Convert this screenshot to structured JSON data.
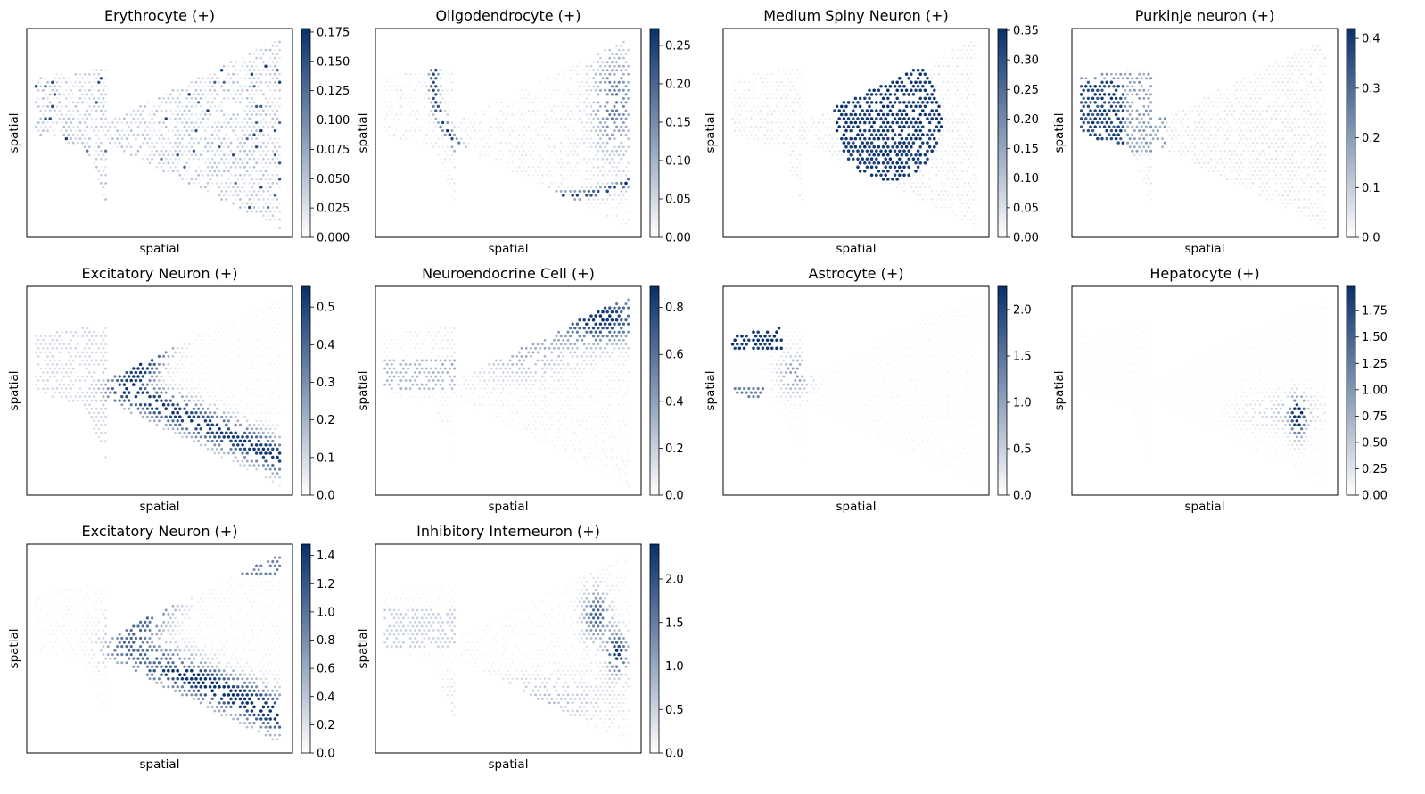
{
  "colors": {
    "cmap_low": "#ffffff",
    "cmap_high": "#08306b",
    "frame": "#000000"
  },
  "chart_data": [
    {
      "type": "scatter",
      "title": "Erythrocyte (+)",
      "xlabel": "spatial",
      "ylabel": "spatial",
      "colorbar": {
        "vmin": 0.0,
        "vmax": 0.178,
        "ticks": [
          "0.000",
          "0.025",
          "0.050",
          "0.075",
          "0.100",
          "0.125",
          "0.150",
          "0.175"
        ],
        "tick_values": [
          0,
          0.025,
          0.05,
          0.075,
          0.1,
          0.125,
          0.15,
          0.175
        ]
      },
      "pattern": "uniform-speckle"
    },
    {
      "type": "scatter",
      "title": "Oligodendrocyte (+)",
      "xlabel": "spatial",
      "ylabel": "spatial",
      "colorbar": {
        "vmin": 0.0,
        "vmax": 0.272,
        "ticks": [
          "0.00",
          "0.05",
          "0.10",
          "0.15",
          "0.20",
          "0.25"
        ],
        "tick_values": [
          0,
          0.05,
          0.1,
          0.15,
          0.2,
          0.25
        ]
      },
      "pattern": "tracts"
    },
    {
      "type": "scatter",
      "title": "Medium Spiny Neuron (+)",
      "xlabel": "spatial",
      "ylabel": "spatial",
      "colorbar": {
        "vmin": 0.0,
        "vmax": 0.353,
        "ticks": [
          "0.00",
          "0.05",
          "0.10",
          "0.15",
          "0.20",
          "0.25",
          "0.30",
          "0.35"
        ],
        "tick_values": [
          0,
          0.05,
          0.1,
          0.15,
          0.2,
          0.25,
          0.3,
          0.35
        ]
      },
      "pattern": "striatum"
    },
    {
      "type": "scatter",
      "title": "Purkinje neuron (+)",
      "xlabel": "spatial",
      "ylabel": "spatial",
      "colorbar": {
        "vmin": 0.0,
        "vmax": 0.42,
        "ticks": [
          "0.0",
          "0.1",
          "0.2",
          "0.3",
          "0.4"
        ],
        "tick_values": [
          0,
          0.1,
          0.2,
          0.3,
          0.4
        ]
      },
      "pattern": "cerebellum"
    },
    {
      "type": "scatter",
      "title": "Excitatory Neuron (+)",
      "xlabel": "spatial",
      "ylabel": "spatial",
      "colorbar": {
        "vmin": 0.0,
        "vmax": 0.555,
        "ticks": [
          "0.0",
          "0.1",
          "0.2",
          "0.3",
          "0.4",
          "0.5"
        ],
        "tick_values": [
          0,
          0.1,
          0.2,
          0.3,
          0.4,
          0.5
        ]
      },
      "pattern": "cortex-band"
    },
    {
      "type": "scatter",
      "title": "Neuroendocrine Cell (+)",
      "xlabel": "spatial",
      "ylabel": "spatial",
      "colorbar": {
        "vmin": 0.0,
        "vmax": 0.89,
        "ticks": [
          "0.0",
          "0.2",
          "0.4",
          "0.6",
          "0.8"
        ],
        "tick_values": [
          0,
          0.2,
          0.4,
          0.6,
          0.8
        ]
      },
      "pattern": "upper-right"
    },
    {
      "type": "scatter",
      "title": "Astrocyte (+)",
      "xlabel": "spatial",
      "ylabel": "spatial",
      "colorbar": {
        "vmin": 0.0,
        "vmax": 2.25,
        "ticks": [
          "0.0",
          "0.5",
          "1.0",
          "1.5",
          "2.0"
        ],
        "tick_values": [
          0,
          0.5,
          1.0,
          1.5,
          2.0
        ]
      },
      "pattern": "left-lobes"
    },
    {
      "type": "scatter",
      "title": "Hepatocyte (+)",
      "xlabel": "spatial",
      "ylabel": "spatial",
      "colorbar": {
        "vmin": 0.0,
        "vmax": 1.98,
        "ticks": [
          "0.00",
          "0.25",
          "0.50",
          "0.75",
          "1.00",
          "1.25",
          "1.50",
          "1.75"
        ],
        "tick_values": [
          0,
          0.25,
          0.5,
          0.75,
          1.0,
          1.25,
          1.5,
          1.75
        ]
      },
      "pattern": "right-spot"
    },
    {
      "type": "scatter",
      "title": "Excitatory Neuron (+)",
      "xlabel": "spatial",
      "ylabel": "spatial",
      "colorbar": {
        "vmin": 0.0,
        "vmax": 1.48,
        "ticks": [
          "0.0",
          "0.2",
          "0.4",
          "0.6",
          "0.8",
          "1.0",
          "1.2",
          "1.4"
        ],
        "tick_values": [
          0,
          0.2,
          0.4,
          0.6,
          0.8,
          1.0,
          1.2,
          1.4
        ]
      },
      "pattern": "cortex-thick"
    },
    {
      "type": "scatter",
      "title": "Inhibitory Interneuron (+)",
      "xlabel": "spatial",
      "ylabel": "spatial",
      "colorbar": {
        "vmin": 0.0,
        "vmax": 2.4,
        "ticks": [
          "0.0",
          "0.5",
          "1.0",
          "1.5",
          "2.0"
        ],
        "tick_values": [
          0,
          0.5,
          1.0,
          1.5,
          2.0
        ]
      },
      "pattern": "right-patches"
    }
  ]
}
